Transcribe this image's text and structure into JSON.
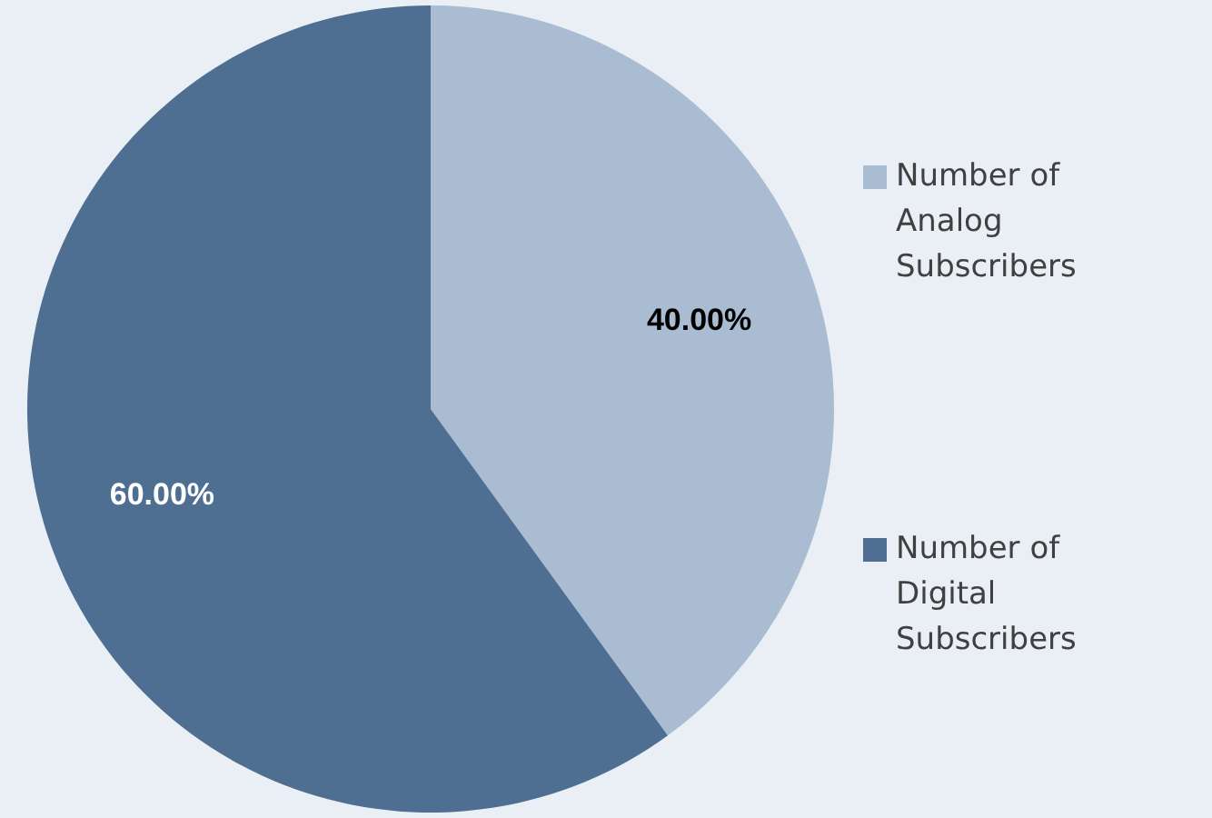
{
  "chart_data": {
    "type": "pie",
    "categories": [
      "Number of Analog Subscribers",
      "Number of Digital Subscribers"
    ],
    "values": [
      40,
      60
    ],
    "colors": [
      "#a9bcd1",
      "#4e6f91"
    ],
    "value_labels": [
      "40.00%",
      "60.00%"
    ],
    "legend": "right"
  }
}
